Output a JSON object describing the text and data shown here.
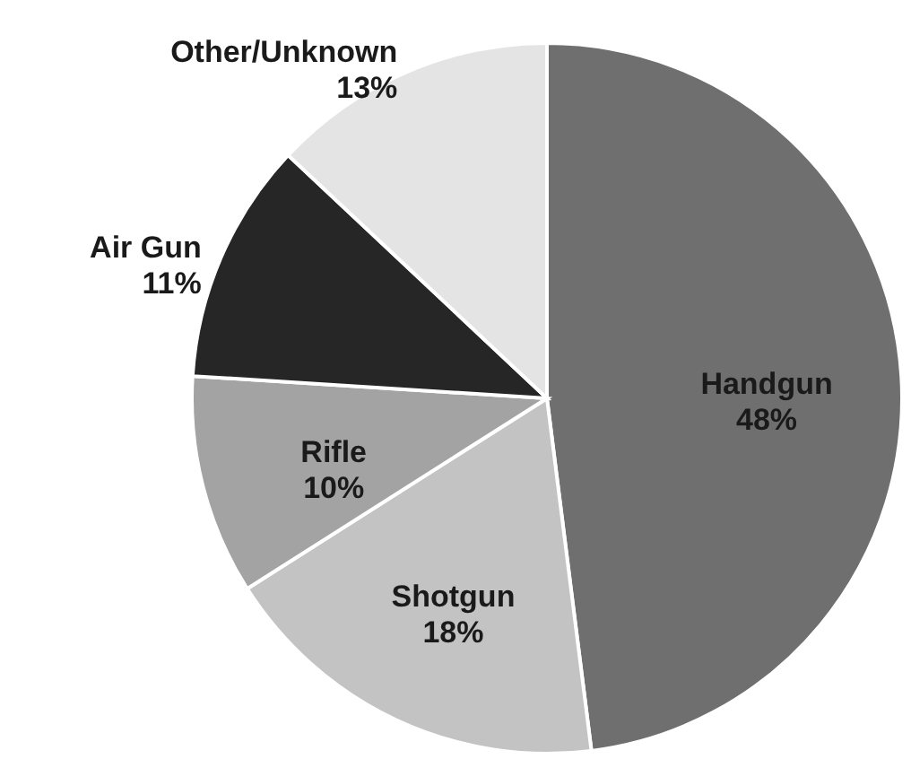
{
  "chart_data": {
    "type": "pie",
    "categories": [
      "Handgun",
      "Shotgun",
      "Rifle",
      "Air Gun",
      "Other/Unknown"
    ],
    "values": [
      48,
      18,
      10,
      11,
      13
    ],
    "value_labels": [
      "48%",
      "18%",
      "10%",
      "11%",
      "13%"
    ],
    "colors": [
      "#6f6f6f",
      "#c3c3c3",
      "#a3a3a3",
      "#262626",
      "#e4e4e4"
    ]
  }
}
